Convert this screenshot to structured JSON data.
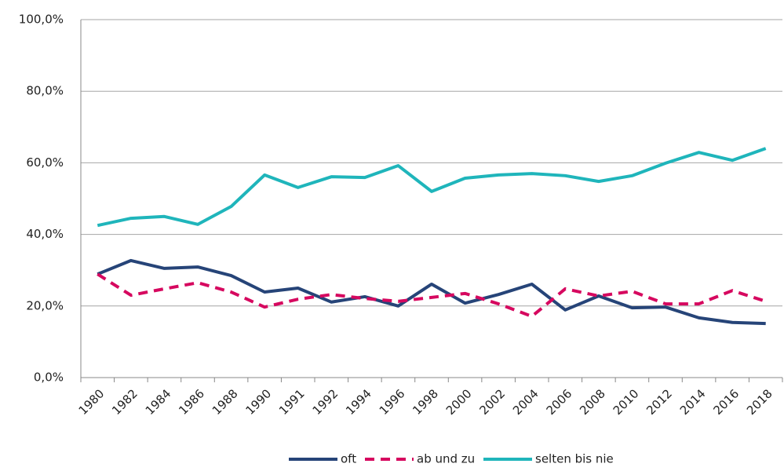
{
  "chart_data": {
    "type": "line",
    "categories": [
      "1980",
      "1982",
      "1984",
      "1986",
      "1988",
      "1990",
      "1991",
      "1992",
      "1994",
      "1996",
      "1998",
      "2000",
      "2002",
      "2004",
      "2006",
      "2008",
      "2010",
      "2012",
      "2014",
      "2016",
      "2018"
    ],
    "series": [
      {
        "name": "oft",
        "color": "#264478",
        "dash": false,
        "values": [
          28.9,
          32.7,
          30.5,
          30.9,
          28.5,
          23.9,
          25.0,
          21.1,
          22.6,
          20.0,
          26.1,
          20.8,
          23.2,
          26.1,
          18.9,
          22.8,
          19.5,
          19.7,
          16.7,
          15.4,
          15.1
        ]
      },
      {
        "name": "ab und zu",
        "color": "#d6085f",
        "dash": true,
        "values": [
          28.9,
          23.0,
          24.8,
          26.5,
          23.9,
          19.7,
          21.9,
          23.2,
          22.1,
          21.3,
          22.4,
          23.5,
          20.6,
          17.1,
          24.8,
          22.8,
          24.1,
          20.6,
          20.6,
          24.3,
          21.3
        ]
      },
      {
        "name": "selten bis nie",
        "color": "#1fb5bb",
        "dash": false,
        "values": [
          42.5,
          44.5,
          45.0,
          42.8,
          47.8,
          56.6,
          53.1,
          56.1,
          55.9,
          59.2,
          52.0,
          55.7,
          56.6,
          57.0,
          56.4,
          54.8,
          56.4,
          59.9,
          62.9,
          60.7,
          64.0
        ]
      }
    ],
    "ylim": [
      0,
      100
    ],
    "yticks": [
      {
        "value": 0,
        "label": "0,0%"
      },
      {
        "value": 20,
        "label": "20,0%"
      },
      {
        "value": 40,
        "label": "40,0%"
      },
      {
        "value": 60,
        "label": "60,0%"
      },
      {
        "value": 80,
        "label": "80,0%"
      },
      {
        "value": 100,
        "label": "100,0%"
      }
    ],
    "grid": true,
    "legend": "bottom"
  }
}
